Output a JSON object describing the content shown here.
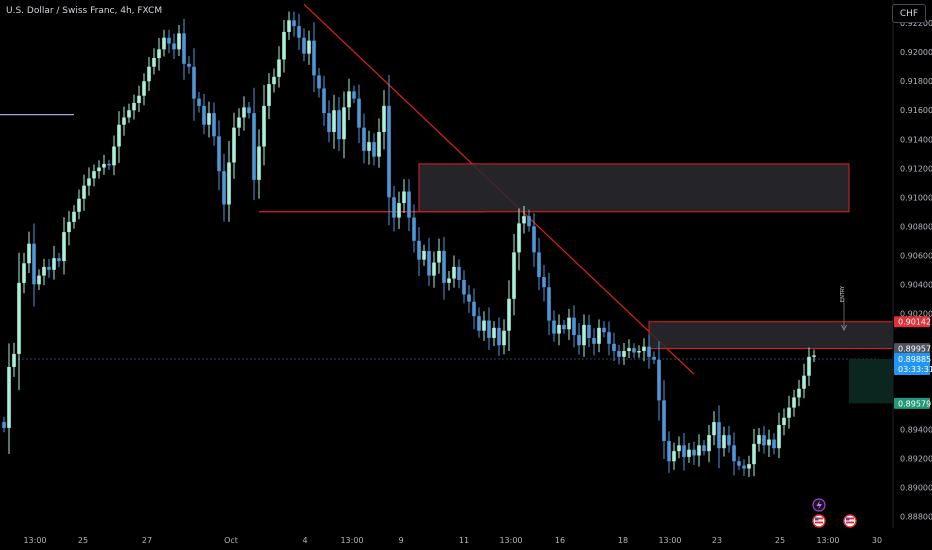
{
  "header": {
    "symbol_title": "U.S. Dollar / Swiss Franc, 4h, FXCM",
    "currency": "CHF"
  },
  "colors": {
    "background": "#000000",
    "up_candle": "#a9f0dc",
    "down_candle": "#4f97d6",
    "trendline": "#e0201f",
    "zone_border": "#e0201f",
    "zone_fill": "#2a2a30",
    "price_tag_current": "#2196f3",
    "price_tag_red": "#e0303a",
    "price_tag_green": "#22997a",
    "price_tag_gray": "#50535e",
    "axis_text": "#b2b5be"
  },
  "annotations": {
    "entry_label": "ENTRY",
    "lightning_icon": "lightning-event-icon",
    "flag_icon": "us-flag-event-icon"
  },
  "chart_data": {
    "type": "candlestick",
    "title": "U.S. Dollar / Swiss Franc, 4h, FXCM",
    "ylim": [
      0.8872,
      0.9236
    ],
    "y_ticks": [
      "0.92200",
      "0.92000",
      "0.91800",
      "0.91600",
      "0.91400",
      "0.91200",
      "0.91000",
      "0.90800",
      "0.90600",
      "0.90400",
      "0.90200",
      "0.89400",
      "0.89200",
      "0.89000",
      "0.88800"
    ],
    "x_ticks": [
      "13:00",
      "25",
      "27",
      "Oct",
      "4",
      "13:00",
      "9",
      "11",
      "13:00",
      "16",
      "18",
      "13:00",
      "23",
      "25",
      "13:00",
      "30"
    ],
    "price_tags": {
      "zone_top": "0.90142",
      "zone_bottom": "0.89957",
      "current": "0.89885",
      "countdown": "03:33:31",
      "target": "0.89579"
    },
    "pivots": [
      [
        0,
        0.8941
      ],
      [
        1,
        0.8983
      ],
      [
        2,
        0.8992
      ],
      [
        3,
        0.9041
      ],
      [
        5,
        0.9068
      ],
      [
        6,
        0.904
      ],
      [
        8,
        0.9052
      ],
      [
        9,
        0.905
      ],
      [
        10,
        0.9058
      ],
      [
        11,
        0.9056
      ],
      [
        12,
        0.9076
      ],
      [
        14,
        0.909
      ],
      [
        16,
        0.9108
      ],
      [
        18,
        0.9118
      ],
      [
        20,
        0.9123
      ],
      [
        21,
        0.9122
      ],
      [
        22,
        0.9135
      ],
      [
        23,
        0.915
      ],
      [
        25,
        0.916
      ],
      [
        27,
        0.917
      ],
      [
        29,
        0.919
      ],
      [
        31,
        0.9202
      ],
      [
        32,
        0.921
      ],
      [
        34,
        0.9202
      ],
      [
        35,
        0.9213
      ],
      [
        36,
        0.9192
      ],
      [
        37,
        0.919
      ],
      [
        38,
        0.9168
      ],
      [
        39,
        0.9163
      ],
      [
        40,
        0.915
      ],
      [
        41,
        0.9158
      ],
      [
        42,
        0.9142
      ],
      [
        43,
        0.9118
      ],
      [
        44,
        0.9095
      ],
      [
        45,
        0.9124
      ],
      [
        46,
        0.9148
      ],
      [
        47,
        0.9155
      ],
      [
        48,
        0.9162
      ],
      [
        49,
        0.9158
      ],
      [
        50,
        0.9112
      ],
      [
        51,
        0.9135
      ],
      [
        52,
        0.9163
      ],
      [
        53,
        0.9178
      ],
      [
        54,
        0.9183
      ],
      [
        55,
        0.9195
      ],
      [
        56,
        0.9214
      ],
      [
        57,
        0.9222
      ],
      [
        58,
        0.9218
      ],
      [
        59,
        0.921
      ],
      [
        60,
        0.9199
      ],
      [
        61,
        0.9208
      ],
      [
        62,
        0.9184
      ],
      [
        63,
        0.9175
      ],
      [
        64,
        0.9158
      ],
      [
        65,
        0.9145
      ],
      [
        66,
        0.916
      ],
      [
        67,
        0.914
      ],
      [
        68,
        0.9162
      ],
      [
        69,
        0.9173
      ],
      [
        70,
        0.9168
      ],
      [
        71,
        0.9148
      ],
      [
        72,
        0.9132
      ],
      [
        73,
        0.9138
      ],
      [
        74,
        0.9128
      ],
      [
        75,
        0.9145
      ],
      [
        76,
        0.9163
      ],
      [
        77,
        0.91
      ],
      [
        78,
        0.9086
      ],
      [
        79,
        0.9096
      ],
      [
        80,
        0.9104
      ],
      [
        81,
        0.9086
      ],
      [
        82,
        0.907
      ],
      [
        83,
        0.9057
      ],
      [
        84,
        0.9063
      ],
      [
        85,
        0.9046
      ],
      [
        86,
        0.9055
      ],
      [
        87,
        0.9063
      ],
      [
        88,
        0.9041
      ],
      [
        89,
        0.9044
      ],
      [
        90,
        0.9052
      ],
      [
        91,
        0.9043
      ],
      [
        92,
        0.9033
      ],
      [
        93,
        0.9028
      ],
      [
        94,
        0.9018
      ],
      [
        95,
        0.9008
      ],
      [
        96,
        0.9015
      ],
      [
        97,
        0.9003
      ],
      [
        98,
        0.901
      ],
      [
        99,
        0.8998
      ],
      [
        100,
        0.9008
      ],
      [
        101,
        0.903
      ],
      [
        102,
        0.9062
      ],
      [
        103,
        0.9082
      ],
      [
        104,
        0.9087
      ],
      [
        105,
        0.908
      ],
      [
        106,
        0.9062
      ],
      [
        107,
        0.9045
      ],
      [
        108,
        0.9038
      ],
      [
        109,
        0.9015
      ],
      [
        110,
        0.9006
      ],
      [
        111,
        0.9012
      ],
      [
        112,
        0.9009
      ],
      [
        113,
        0.9017
      ],
      [
        114,
        0.9005
      ],
      [
        115,
        0.8998
      ],
      [
        116,
        0.9012
      ],
      [
        117,
        0.9003
      ],
      [
        118,
        0.8999
      ],
      [
        119,
        0.901
      ],
      [
        120,
        0.9007
      ],
      [
        121,
        0.8999
      ],
      [
        122,
        0.8994
      ],
      [
        123,
        0.899
      ],
      [
        124,
        0.8994
      ],
      [
        125,
        0.8996
      ],
      [
        126,
        0.8993
      ],
      [
        127,
        0.8994
      ],
      [
        128,
        0.8997
      ],
      [
        129,
        0.899
      ],
      [
        130,
        0.8988
      ],
      [
        131,
        0.896
      ],
      [
        132,
        0.8932
      ],
      [
        133,
        0.8918
      ],
      [
        134,
        0.8925
      ],
      [
        135,
        0.8929
      ],
      [
        136,
        0.8921
      ],
      [
        137,
        0.8926
      ],
      [
        138,
        0.8922
      ],
      [
        139,
        0.8929
      ],
      [
        140,
        0.8925
      ],
      [
        141,
        0.8936
      ],
      [
        142,
        0.8945
      ],
      [
        143,
        0.8927
      ],
      [
        144,
        0.8936
      ],
      [
        145,
        0.8929
      ],
      [
        146,
        0.8918
      ],
      [
        147,
        0.8915
      ],
      [
        148,
        0.8913
      ],
      [
        149,
        0.8916
      ],
      [
        150,
        0.893
      ],
      [
        151,
        0.8936
      ],
      [
        152,
        0.8929
      ],
      [
        153,
        0.8933
      ],
      [
        154,
        0.8927
      ],
      [
        155,
        0.8943
      ],
      [
        156,
        0.8948
      ],
      [
        157,
        0.8955
      ],
      [
        158,
        0.8962
      ],
      [
        159,
        0.8968
      ],
      [
        160,
        0.8977
      ],
      [
        161,
        0.899
      ],
      [
        162,
        0.8991
      ]
    ],
    "candle_count": 163,
    "horizontal_lines": [
      {
        "name": "left-purple-level",
        "price": 0.9157,
        "from_index": -5,
        "to_index": 14,
        "color": "#b39ddb"
      },
      {
        "name": "support-red-level",
        "price": 0.909,
        "from_index": 51,
        "to_index": 96,
        "color": "#e0201f"
      },
      {
        "name": "current-price-line",
        "price": 0.89885,
        "from_index": 2,
        "to_index": 175,
        "color": "#2a5a8a",
        "dashed": true
      }
    ],
    "trendline": {
      "from": [
        60,
        0.9233
      ],
      "to": [
        138,
        0.8978
      ]
    },
    "zones": [
      {
        "name": "supply-zone-upper",
        "from_index": 83,
        "to_index": 169,
        "top": 0.9123,
        "bottom": 0.909
      },
      {
        "name": "supply-zone-lower",
        "from_index": 129,
        "to_index": 185,
        "top": 0.90142,
        "bottom": 0.89957
      }
    ],
    "target_box": {
      "from_index": 169,
      "to_index": 185,
      "top": 0.89885,
      "bottom": 0.89579
    },
    "entry_marker_index": 168
  }
}
